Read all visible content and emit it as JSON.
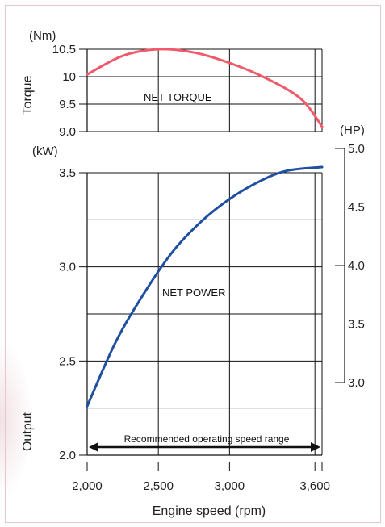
{
  "chart_data": {
    "type": "line",
    "x_label": "Engine speed (rpm)",
    "x_range": [
      2000,
      3650
    ],
    "x_ticks": [
      {
        "value": 2000,
        "label": "2,000"
      },
      {
        "value": 2500,
        "label": "2,500"
      },
      {
        "value": 3000,
        "label": "3,000"
      },
      {
        "value": 3600,
        "label": "3,600"
      }
    ],
    "torque_axis": {
      "title": "Torque",
      "unit": "(Nm)",
      "range": [
        9.0,
        10.5
      ],
      "ticks": [
        {
          "value": 10.5,
          "label": "10.5"
        },
        {
          "value": 10.0,
          "label": "10"
        },
        {
          "value": 9.5,
          "label": "9.5"
        },
        {
          "value": 9.0,
          "label": "9.0"
        }
      ]
    },
    "power_axis": {
      "title": "Output",
      "unit": "(kW)",
      "range": [
        2.0,
        3.5
      ],
      "ticks": [
        {
          "value": 3.5,
          "label": "3.5"
        },
        {
          "value": 3.0,
          "label": "3.0"
        },
        {
          "value": 2.5,
          "label": "2.5"
        },
        {
          "value": 2.0,
          "label": "2.0"
        }
      ]
    },
    "hp_axis": {
      "unit": "(HP)",
      "range": [
        3.0,
        5.0
      ],
      "ticks": [
        {
          "value": 5.0,
          "label": "5.0"
        },
        {
          "value": 4.5,
          "label": "4.5"
        },
        {
          "value": 4.0,
          "label": "4.0"
        },
        {
          "value": 3.5,
          "label": "3.5"
        },
        {
          "value": 3.0,
          "label": "3.0"
        }
      ]
    },
    "series": [
      {
        "name": "NET TORQUE",
        "axis": "torque",
        "color": "#f05a6a",
        "points": [
          [
            2000,
            10.04
          ],
          [
            2250,
            10.38
          ],
          [
            2500,
            10.5
          ],
          [
            2750,
            10.44
          ],
          [
            3000,
            10.25
          ],
          [
            3250,
            9.98
          ],
          [
            3500,
            9.6
          ],
          [
            3650,
            9.09
          ]
        ]
      },
      {
        "name": "NET POWER",
        "axis": "power",
        "color": "#1f4fa0",
        "points": [
          [
            2000,
            2.26
          ],
          [
            2200,
            2.6
          ],
          [
            2400,
            2.86
          ],
          [
            2600,
            3.08
          ],
          [
            2800,
            3.24
          ],
          [
            3000,
            3.36
          ],
          [
            3200,
            3.45
          ],
          [
            3400,
            3.51
          ],
          [
            3650,
            3.53
          ]
        ]
      }
    ],
    "range_annotation": {
      "label": "Recommended operating speed range",
      "from": 2000,
      "to": 3650
    },
    "grid": true
  },
  "colors": {
    "torque": "#f05a6a",
    "power": "#1f4fa0",
    "grid": "#111111"
  }
}
